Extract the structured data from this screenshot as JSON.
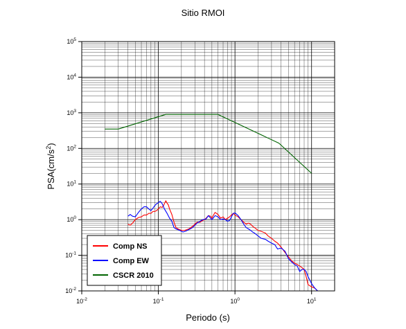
{
  "chart_data": {
    "type": "line",
    "title": "Sitio RMOI",
    "xlabel": "Periodo (s)",
    "ylabel_base": "PSA(cm/s",
    "ylabel_exp": "2",
    "ylabel_close": ")",
    "x_scale": "log",
    "y_scale": "log",
    "xlim": [
      0.01,
      20
    ],
    "ylim": [
      0.01,
      100000
    ],
    "grid": true,
    "legend_position": "bottom-left",
    "x_ticks": [
      {
        "base": "10",
        "exp": "-2",
        "value": 0.01
      },
      {
        "base": "10",
        "exp": "-1",
        "value": 0.1
      },
      {
        "base": "10",
        "exp": "0",
        "value": 1
      },
      {
        "base": "10",
        "exp": "1",
        "value": 10
      }
    ],
    "y_ticks": [
      {
        "base": "10",
        "exp": "-2",
        "value": 0.01
      },
      {
        "base": "10",
        "exp": "-1",
        "value": 0.1
      },
      {
        "base": "10",
        "exp": "0",
        "value": 1
      },
      {
        "base": "10",
        "exp": "1",
        "value": 10
      },
      {
        "base": "10",
        "exp": "2",
        "value": 100
      },
      {
        "base": "10",
        "exp": "3",
        "value": 1000
      },
      {
        "base": "10",
        "exp": "4",
        "value": 10000
      },
      {
        "base": "10",
        "exp": "5",
        "value": 100000
      }
    ],
    "series": [
      {
        "name": "Comp NS",
        "color": "#ff0000",
        "points": [
          [
            0.04,
            0.75
          ],
          [
            0.043,
            0.7
          ],
          [
            0.046,
            0.8
          ],
          [
            0.05,
            1.0
          ],
          [
            0.055,
            1.15
          ],
          [
            0.06,
            1.2
          ],
          [
            0.065,
            1.35
          ],
          [
            0.07,
            1.35
          ],
          [
            0.075,
            1.5
          ],
          [
            0.08,
            1.5
          ],
          [
            0.085,
            1.7
          ],
          [
            0.09,
            1.7
          ],
          [
            0.095,
            1.8
          ],
          [
            0.1,
            2.0
          ],
          [
            0.106,
            2.3
          ],
          [
            0.112,
            2.2
          ],
          [
            0.118,
            2.6
          ],
          [
            0.125,
            3.4
          ],
          [
            0.13,
            2.9
          ],
          [
            0.135,
            2.6
          ],
          [
            0.14,
            2.0
          ],
          [
            0.15,
            1.4
          ],
          [
            0.16,
            0.85
          ],
          [
            0.17,
            0.6
          ],
          [
            0.18,
            0.55
          ],
          [
            0.2,
            0.5
          ],
          [
            0.22,
            0.5
          ],
          [
            0.25,
            0.55
          ],
          [
            0.28,
            0.65
          ],
          [
            0.3,
            0.75
          ],
          [
            0.32,
            0.85
          ],
          [
            0.35,
            0.85
          ],
          [
            0.38,
            0.95
          ],
          [
            0.4,
            1.0
          ],
          [
            0.42,
            1.1
          ],
          [
            0.45,
            1.3
          ],
          [
            0.48,
            1.25
          ],
          [
            0.5,
            1.1
          ],
          [
            0.52,
            1.3
          ],
          [
            0.55,
            1.6
          ],
          [
            0.6,
            1.4
          ],
          [
            0.65,
            1.1
          ],
          [
            0.7,
            1.2
          ],
          [
            0.75,
            1.0
          ],
          [
            0.8,
            1.1
          ],
          [
            0.85,
            1.2
          ],
          [
            0.9,
            1.35
          ],
          [
            0.95,
            1.5
          ],
          [
            1.0,
            1.35
          ],
          [
            1.1,
            1.2
          ],
          [
            1.2,
            1.0
          ],
          [
            1.3,
            0.85
          ],
          [
            1.4,
            0.75
          ],
          [
            1.5,
            0.8
          ],
          [
            1.6,
            0.75
          ],
          [
            1.7,
            0.65
          ],
          [
            1.8,
            0.6
          ],
          [
            2.0,
            0.5
          ],
          [
            2.2,
            0.47
          ],
          [
            2.5,
            0.42
          ],
          [
            2.7,
            0.35
          ],
          [
            3.0,
            0.3
          ],
          [
            3.3,
            0.25
          ],
          [
            3.6,
            0.22
          ],
          [
            4.0,
            0.17
          ],
          [
            4.5,
            0.12
          ],
          [
            5.0,
            0.09
          ],
          [
            5.5,
            0.07
          ],
          [
            6.0,
            0.06
          ],
          [
            6.5,
            0.055
          ],
          [
            7.0,
            0.05
          ],
          [
            7.5,
            0.045
          ],
          [
            8.0,
            0.04
          ],
          [
            8.5,
            0.025
          ],
          [
            9.0,
            0.015
          ],
          [
            10.0,
            0.013
          ],
          [
            11.0,
            0.012
          ],
          [
            12.0,
            0.01
          ]
        ]
      },
      {
        "name": "Comp EW",
        "color": "#0000ff",
        "points": [
          [
            0.04,
            1.25
          ],
          [
            0.043,
            1.4
          ],
          [
            0.046,
            1.25
          ],
          [
            0.05,
            1.2
          ],
          [
            0.055,
            1.6
          ],
          [
            0.06,
            2.0
          ],
          [
            0.065,
            2.3
          ],
          [
            0.07,
            2.3
          ],
          [
            0.075,
            2.0
          ],
          [
            0.08,
            1.8
          ],
          [
            0.085,
            2.1
          ],
          [
            0.09,
            2.5
          ],
          [
            0.095,
            2.8
          ],
          [
            0.1,
            3.0
          ],
          [
            0.105,
            3.3
          ],
          [
            0.11,
            3.0
          ],
          [
            0.115,
            2.5
          ],
          [
            0.12,
            2.0
          ],
          [
            0.13,
            1.5
          ],
          [
            0.14,
            1.1
          ],
          [
            0.15,
            0.9
          ],
          [
            0.16,
            0.6
          ],
          [
            0.17,
            0.55
          ],
          [
            0.19,
            0.5
          ],
          [
            0.21,
            0.45
          ],
          [
            0.23,
            0.48
          ],
          [
            0.26,
            0.55
          ],
          [
            0.28,
            0.6
          ],
          [
            0.3,
            0.7
          ],
          [
            0.32,
            0.8
          ],
          [
            0.35,
            0.9
          ],
          [
            0.38,
            1.0
          ],
          [
            0.42,
            1.05
          ],
          [
            0.45,
            1.3
          ],
          [
            0.5,
            1.0
          ],
          [
            0.55,
            1.3
          ],
          [
            0.6,
            1.2
          ],
          [
            0.65,
            1.0
          ],
          [
            0.7,
            1.05
          ],
          [
            0.75,
            1.0
          ],
          [
            0.8,
            0.9
          ],
          [
            0.85,
            0.95
          ],
          [
            0.9,
            1.2
          ],
          [
            0.95,
            1.5
          ],
          [
            1.0,
            1.55
          ],
          [
            1.1,
            1.3
          ],
          [
            1.2,
            1.0
          ],
          [
            1.3,
            0.75
          ],
          [
            1.4,
            0.6
          ],
          [
            1.5,
            0.55
          ],
          [
            1.6,
            0.5
          ],
          [
            1.7,
            0.45
          ],
          [
            1.8,
            0.42
          ],
          [
            2.0,
            0.35
          ],
          [
            2.2,
            0.3
          ],
          [
            2.5,
            0.28
          ],
          [
            2.7,
            0.25
          ],
          [
            3.0,
            0.22
          ],
          [
            3.3,
            0.2
          ],
          [
            3.6,
            0.15
          ],
          [
            4.0,
            0.16
          ],
          [
            4.5,
            0.13
          ],
          [
            5.0,
            0.08
          ],
          [
            5.5,
            0.065
          ],
          [
            6.0,
            0.055
          ],
          [
            6.5,
            0.05
          ],
          [
            7.0,
            0.035
          ],
          [
            7.5,
            0.04
          ],
          [
            8.0,
            0.04
          ],
          [
            8.5,
            0.035
          ],
          [
            9.0,
            0.025
          ],
          [
            10.0,
            0.016
          ],
          [
            11.0,
            0.012
          ],
          [
            12.0,
            0.01
          ]
        ]
      },
      {
        "name": "CSCR 2010",
        "color": "#006400",
        "points": [
          [
            0.02,
            350
          ],
          [
            0.03,
            350
          ],
          [
            0.125,
            900
          ],
          [
            0.6,
            900
          ],
          [
            3.75,
            140
          ],
          [
            10.0,
            20
          ]
        ]
      }
    ]
  }
}
